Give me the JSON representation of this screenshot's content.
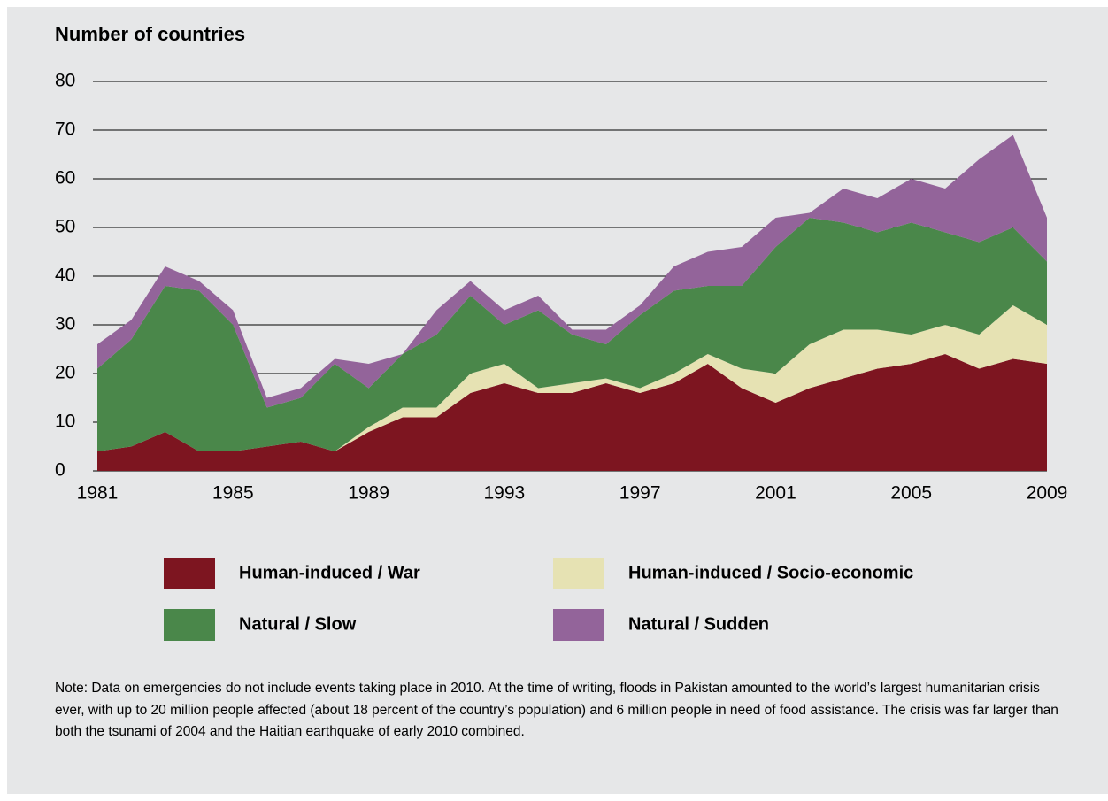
{
  "chart_data": {
    "type": "stacked_area",
    "y_axis_title": "Number of countries",
    "x": [
      1981,
      1982,
      1983,
      1984,
      1985,
      1986,
      1987,
      1988,
      1989,
      1990,
      1991,
      1992,
      1993,
      1994,
      1995,
      1996,
      1997,
      1998,
      1999,
      2000,
      2001,
      2002,
      2003,
      2004,
      2005,
      2006,
      2007,
      2008,
      2009
    ],
    "xlim": [
      1981,
      2009
    ],
    "xticks": [
      1981,
      1985,
      1989,
      1993,
      1997,
      2001,
      2005,
      2009
    ],
    "ylim": [
      0,
      80
    ],
    "yticks": [
      0,
      10,
      20,
      30,
      40,
      50,
      60,
      70,
      80
    ],
    "grid": true,
    "series": [
      {
        "name": "Human-induced / War",
        "color": "#7d1520",
        "values": [
          4,
          5,
          8,
          4,
          4,
          5,
          6,
          4,
          8,
          11,
          11,
          16,
          18,
          16,
          16,
          18,
          16,
          18,
          22,
          17,
          14,
          17,
          19,
          21,
          22,
          24,
          21,
          23,
          22
        ]
      },
      {
        "name": "Human-induced / Socio-economic",
        "color": "#e6e2b3",
        "values": [
          0,
          0,
          0,
          0,
          0,
          0,
          0,
          0,
          1,
          2,
          2,
          4,
          4,
          1,
          2,
          1,
          1,
          2,
          2,
          4,
          6,
          9,
          10,
          8,
          6,
          6,
          7,
          11,
          8
        ]
      },
      {
        "name": "Natural / Slow",
        "color": "#4a874a",
        "values": [
          17,
          22,
          30,
          33,
          26,
          8,
          9,
          18,
          8,
          11,
          15,
          16,
          8,
          16,
          10,
          7,
          15,
          17,
          14,
          17,
          26,
          26,
          22,
          20,
          23,
          19,
          19,
          16,
          13
        ]
      },
      {
        "name": "Natural / Sudden",
        "color": "#93649a",
        "values": [
          5,
          4,
          4,
          2,
          3,
          2,
          2,
          1,
          5,
          0,
          5,
          3,
          3,
          3,
          1,
          3,
          2,
          5,
          7,
          8,
          6,
          1,
          7,
          7,
          9,
          9,
          17,
          19,
          9
        ]
      }
    ]
  },
  "note": "Note: Data on emergencies do not include events taking place in 2010. At the time of writing, floods in Pakistan amounted to the world’s largest humanitarian crisis ever, with up to 20 million people affected (about 18 percent of the country’s population) and 6 million people in need of food assistance. The crisis was far larger than both the tsunami of 2004 and the Haitian earthquake of early 2010 combined."
}
